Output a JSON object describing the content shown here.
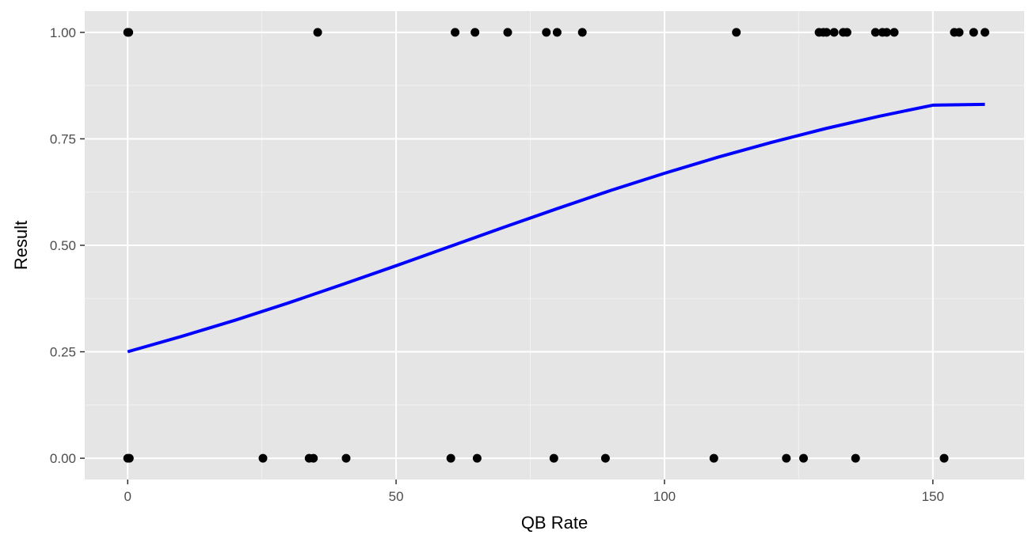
{
  "chart_data": {
    "type": "scatter",
    "title": "",
    "xlabel": "QB Rate",
    "ylabel": "Result",
    "xlim": [
      -8,
      167
    ],
    "ylim": [
      -0.05,
      1.05
    ],
    "x_ticks": [
      0,
      50,
      100,
      150
    ],
    "x_tick_labels": [
      "0",
      "50",
      "100",
      "150"
    ],
    "y_ticks": [
      0,
      0.25,
      0.5,
      0.75,
      1
    ],
    "y_tick_labels": [
      "0.00",
      "0.25",
      "0.50",
      "0.75",
      "1.00"
    ],
    "grid": true,
    "background_color": "#e5e5e5",
    "point_color": "#000000",
    "curve_color": "#0000ff",
    "points": [
      {
        "x": 0,
        "y": 1
      },
      {
        "x": 0.2,
        "y": 1
      },
      {
        "x": 35.4,
        "y": 1
      },
      {
        "x": 61,
        "y": 1
      },
      {
        "x": 64.7,
        "y": 1
      },
      {
        "x": 70.8,
        "y": 1
      },
      {
        "x": 78,
        "y": 1
      },
      {
        "x": 80,
        "y": 1
      },
      {
        "x": 84.7,
        "y": 1
      },
      {
        "x": 113.4,
        "y": 1
      },
      {
        "x": 128.8,
        "y": 1
      },
      {
        "x": 129.6,
        "y": 1
      },
      {
        "x": 130.2,
        "y": 1
      },
      {
        "x": 131.6,
        "y": 1
      },
      {
        "x": 133.3,
        "y": 1
      },
      {
        "x": 134,
        "y": 1
      },
      {
        "x": 139.3,
        "y": 1
      },
      {
        "x": 140.6,
        "y": 1
      },
      {
        "x": 141.4,
        "y": 1
      },
      {
        "x": 142.8,
        "y": 1
      },
      {
        "x": 154,
        "y": 1
      },
      {
        "x": 154.9,
        "y": 1
      },
      {
        "x": 157.6,
        "y": 1
      },
      {
        "x": 159.7,
        "y": 1
      },
      {
        "x": 0,
        "y": 0
      },
      {
        "x": 0.3,
        "y": 0
      },
      {
        "x": 25.2,
        "y": 0
      },
      {
        "x": 33.8,
        "y": 0
      },
      {
        "x": 34.6,
        "y": 0
      },
      {
        "x": 40.7,
        "y": 0
      },
      {
        "x": 60.2,
        "y": 0
      },
      {
        "x": 65.1,
        "y": 0
      },
      {
        "x": 79.4,
        "y": 0
      },
      {
        "x": 89,
        "y": 0
      },
      {
        "x": 109.2,
        "y": 0
      },
      {
        "x": 122.7,
        "y": 0
      },
      {
        "x": 125.9,
        "y": 0
      },
      {
        "x": 135.6,
        "y": 0
      },
      {
        "x": 152.1,
        "y": 0
      }
    ],
    "fit_curve": {
      "type": "logistic",
      "x": [
        0,
        10,
        20,
        30,
        40,
        50,
        60,
        70,
        80,
        90,
        100,
        110,
        120,
        130,
        140,
        150,
        159.7
      ],
      "y": [
        0.25,
        0.286,
        0.324,
        0.365,
        0.408,
        0.452,
        0.497,
        0.542,
        0.586,
        0.629,
        0.669,
        0.707,
        0.742,
        0.774,
        0.803,
        0.829,
        0.831
      ]
    }
  }
}
